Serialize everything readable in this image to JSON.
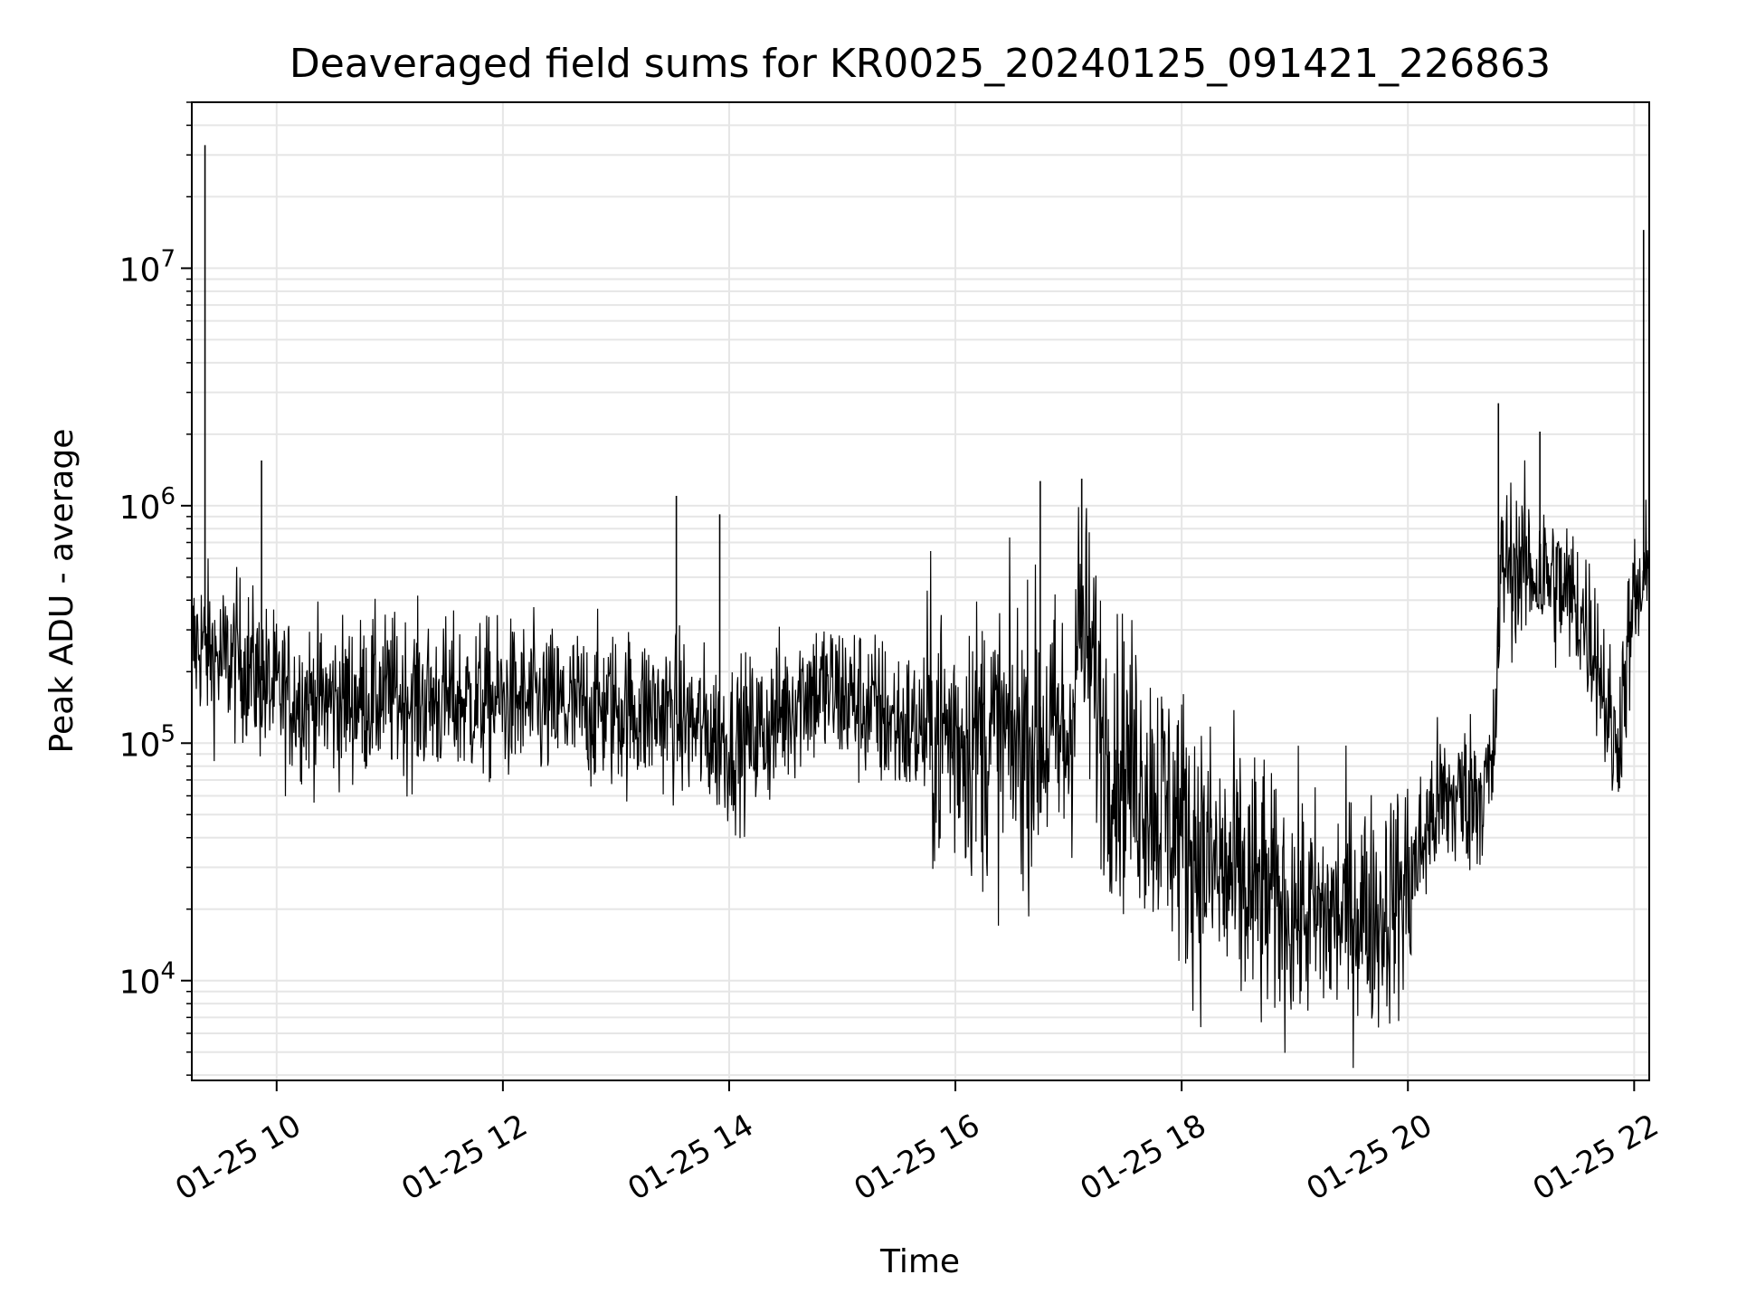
{
  "chart_data": {
    "type": "line",
    "title": "Deaveraged field sums for KR0025_20240125_091421_226863",
    "xlabel": "Time",
    "ylabel": "Peak ADU - average",
    "y_scale": "log",
    "ylim": [
      3800,
      50000000
    ],
    "xlim": [
      "2024-01-25T09:15",
      "2024-01-25T22:08"
    ],
    "grid": true,
    "line_color": "#000000",
    "x_ticks": [
      {
        "label": "01-25 10",
        "t": "2024-01-25T10:00"
      },
      {
        "label": "01-25 12",
        "t": "2024-01-25T12:00"
      },
      {
        "label": "01-25 14",
        "t": "2024-01-25T14:00"
      },
      {
        "label": "01-25 16",
        "t": "2024-01-25T16:00"
      },
      {
        "label": "01-25 18",
        "t": "2024-01-25T18:00"
      },
      {
        "label": "01-25 20",
        "t": "2024-01-25T20:00"
      },
      {
        "label": "01-25 22",
        "t": "2024-01-25T22:00"
      }
    ],
    "y_ticks": [
      {
        "base": "10",
        "exp": "4",
        "value": 10000
      },
      {
        "base": "10",
        "exp": "5",
        "value": 100000
      },
      {
        "base": "10",
        "exp": "6",
        "value": 1000000
      },
      {
        "base": "10",
        "exp": "7",
        "value": 10000000
      }
    ],
    "series": [
      {
        "x": [
          "2024-01-25T09:15",
          "2024-01-25T09:20",
          "2024-01-25T09:25",
          "2024-01-25T09:30",
          "2024-01-25T09:40",
          "2024-01-25T09:50",
          "2024-01-25T10:00",
          "2024-01-25T10:30",
          "2024-01-25T11:00",
          "2024-01-25T11:30",
          "2024-01-25T12:00",
          "2024-01-25T12:30",
          "2024-01-25T13:00",
          "2024-01-25T13:30",
          "2024-01-25T13:40",
          "2024-01-25T14:00",
          "2024-01-25T14:20",
          "2024-01-25T14:40",
          "2024-01-25T15:00",
          "2024-01-25T15:30",
          "2024-01-25T15:45",
          "2024-01-25T16:00",
          "2024-01-25T16:30",
          "2024-01-25T16:45",
          "2024-01-25T17:00",
          "2024-01-25T17:05",
          "2024-01-25T17:10",
          "2024-01-25T17:20",
          "2024-01-25T17:40",
          "2024-01-25T18:00",
          "2024-01-25T18:15",
          "2024-01-25T18:30",
          "2024-01-25T18:45",
          "2024-01-25T19:00",
          "2024-01-25T19:15",
          "2024-01-25T19:30",
          "2024-01-25T19:45",
          "2024-01-25T20:00",
          "2024-01-25T20:15",
          "2024-01-25T20:30",
          "2024-01-25T20:45",
          "2024-01-25T20:50",
          "2024-01-25T21:00",
          "2024-01-25T21:15",
          "2024-01-25T21:30",
          "2024-01-25T21:40",
          "2024-01-25T21:50",
          "2024-01-25T22:00",
          "2024-01-25T22:08"
        ],
        "values": [
          250000,
          270000,
          240000,
          220000,
          230000,
          190000,
          160000,
          150000,
          160000,
          150000,
          150000,
          140000,
          140000,
          135000,
          120000,
          100000,
          115000,
          170000,
          160000,
          120000,
          110000,
          110000,
          100000,
          110000,
          100000,
          300000,
          250000,
          100000,
          70000,
          45000,
          30000,
          25000,
          22000,
          20000,
          18000,
          20000,
          19000,
          25000,
          55000,
          60000,
          70000,
          600000,
          550000,
          500000,
          380000,
          250000,
          90000,
          380000,
          480000
        ]
      },
      {
        "name": "",
        "spikes": [
          {
            "t": "2024-01-25T09:22",
            "value": 33000000
          },
          {
            "t": "2024-01-25T09:52",
            "value": 1550000
          },
          {
            "t": "2024-01-25T13:32",
            "value": 1100000
          },
          {
            "t": "2024-01-25T13:55",
            "value": 920000
          },
          {
            "t": "2024-01-25T16:45",
            "value": 1270000
          },
          {
            "t": "2024-01-25T17:07",
            "value": 1300000
          },
          {
            "t": "2024-01-25T20:48",
            "value": 2700000
          },
          {
            "t": "2024-01-25T21:10",
            "value": 2050000
          },
          {
            "t": "2024-01-25T22:05",
            "value": 14500000
          }
        ]
      }
    ]
  }
}
